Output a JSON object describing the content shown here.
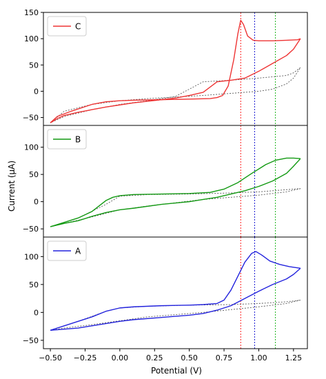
{
  "chart_data": {
    "type": "line",
    "xlabel": "Potential (V)",
    "ylabel": "Current (μA)",
    "xlim": [
      -0.55,
      1.35
    ],
    "x_ticks": [
      -0.5,
      -0.25,
      0.0,
      0.25,
      0.5,
      0.75,
      1.0,
      1.25
    ],
    "x_tick_labels": [
      "−0.50",
      "−0.25",
      "0.00",
      "0.25",
      "0.50",
      "0.75",
      "1.00",
      "1.25"
    ],
    "y_ticks": [
      -50,
      0,
      50,
      100,
      150
    ],
    "grid": false,
    "legend_placement": "top-left",
    "vertical_markers": [
      {
        "x": 0.87,
        "color": "#ff0000"
      },
      {
        "x": 0.97,
        "color": "#0000cc"
      },
      {
        "x": 1.12,
        "color": "#00aa00"
      }
    ],
    "panels": [
      {
        "label": "C",
        "color": "#ee3333",
        "ylim": [
          -65,
          150
        ],
        "y_tick_labels": [
          "−50",
          "0",
          "50",
          "100",
          "150"
        ],
        "cv_curve": {
          "forward": {
            "x": [
              -0.5,
              -0.45,
              -0.35,
              -0.2,
              -0.1,
              0.0,
              0.1,
              0.3,
              0.5,
              0.65,
              0.7,
              0.74,
              0.78,
              0.82,
              0.85,
              0.87,
              0.89,
              0.92,
              0.96,
              1.0,
              1.1,
              1.2,
              1.28,
              1.3
            ],
            "y": [
              -60,
              -48,
              -38,
              -25,
              -20,
              -18,
              -17,
              -16,
              -15,
              -14,
              -12,
              -8,
              10,
              60,
              110,
              135,
              127,
              105,
              97,
              96,
              96,
              97,
              98,
              100
            ]
          },
          "reverse": {
            "x": [
              1.3,
              1.25,
              1.2,
              1.1,
              1.0,
              0.9,
              0.8,
              0.7,
              0.6,
              0.5,
              0.4,
              0.3,
              0.1,
              0.0,
              -0.1,
              -0.2,
              -0.3,
              -0.4,
              -0.45,
              -0.5
            ],
            "y": [
              100,
              80,
              68,
              53,
              38,
              25,
              21,
              18,
              -2,
              -8,
              -13,
              -16,
              -22,
              -26,
              -30,
              -35,
              -40,
              -46,
              -52,
              -60
            ]
          }
        },
        "background": {
          "forward": {
            "x": [
              -0.5,
              -0.4,
              -0.2,
              0.0,
              0.2,
              0.4,
              0.6,
              0.8,
              1.0,
              1.1,
              1.2,
              1.25,
              1.3
            ],
            "y": [
              -60,
              -38,
              -25,
              -18,
              -14,
              -11,
              -8,
              -4,
              0,
              4,
              14,
              25,
              45
            ]
          },
          "reverse": {
            "x": [
              1.3,
              1.25,
              1.2,
              1.0,
              0.8,
              0.6,
              0.4,
              0.2,
              0.0,
              -0.2,
              -0.4,
              -0.5
            ],
            "y": [
              45,
              35,
              30,
              25,
              21,
              18,
              -10,
              -18,
              -25,
              -35,
              -48,
              -60
            ]
          }
        }
      },
      {
        "label": "B",
        "color": "#119911",
        "ylim": [
          -65,
          140
        ],
        "y_tick_labels": [
          "−50",
          "0",
          "50",
          "100"
        ],
        "cv_curve": {
          "forward": {
            "x": [
              -0.5,
              -0.4,
              -0.3,
              -0.2,
              -0.15,
              -0.1,
              -0.05,
              0.0,
              0.1,
              0.3,
              0.5,
              0.65,
              0.75,
              0.85,
              0.95,
              1.05,
              1.12,
              1.2,
              1.25,
              1.3
            ],
            "y": [
              -46,
              -38,
              -30,
              -18,
              -8,
              2,
              8,
              11,
              13,
              14,
              15,
              17,
              23,
              35,
              52,
              68,
              76,
              80,
              80,
              79
            ]
          },
          "reverse": {
            "x": [
              1.3,
              1.25,
              1.2,
              1.1,
              1.0,
              0.9,
              0.8,
              0.7,
              0.6,
              0.5,
              0.3,
              0.1,
              0.0,
              -0.1,
              -0.2,
              -0.3,
              -0.4,
              -0.5
            ],
            "y": [
              79,
              65,
              52,
              38,
              28,
              20,
              14,
              8,
              4,
              0,
              -5,
              -12,
              -15,
              -20,
              -27,
              -35,
              -40,
              -46
            ]
          }
        },
        "background": {
          "forward": {
            "x": [
              -0.5,
              -0.3,
              -0.1,
              0.0,
              0.2,
              0.5,
              0.8,
              1.0,
              1.2,
              1.3
            ],
            "y": [
              -46,
              -30,
              -5,
              10,
              13,
              14,
              16,
              18,
              22,
              24
            ]
          },
          "reverse": {
            "x": [
              1.3,
              1.2,
              1.0,
              0.8,
              0.6,
              0.4,
              0.2,
              0.0,
              -0.2,
              -0.4,
              -0.5
            ],
            "y": [
              24,
              18,
              12,
              8,
              4,
              -2,
              -8,
              -15,
              -28,
              -40,
              -46
            ]
          }
        }
      },
      {
        "label": "A",
        "color": "#2222dd",
        "ylim": [
          -65,
          135
        ],
        "y_tick_labels": [
          "−50",
          "0",
          "50",
          "100"
        ],
        "cv_curve": {
          "forward": {
            "x": [
              -0.5,
              -0.4,
              -0.3,
              -0.2,
              -0.1,
              0.0,
              0.1,
              0.3,
              0.5,
              0.6,
              0.7,
              0.75,
              0.8,
              0.85,
              0.9,
              0.95,
              0.98,
              1.02,
              1.08,
              1.15,
              1.22,
              1.3
            ],
            "y": [
              -32,
              -24,
              -16,
              -8,
              2,
              8,
              10,
              12,
              13,
              14,
              16,
              22,
              40,
              65,
              90,
              106,
              109,
              103,
              92,
              86,
              82,
              79
            ]
          },
          "reverse": {
            "x": [
              1.3,
              1.25,
              1.2,
              1.1,
              1.0,
              0.9,
              0.8,
              0.7,
              0.6,
              0.5,
              0.3,
              0.1,
              0.0,
              -0.1,
              -0.2,
              -0.3,
              -0.4,
              -0.5
            ],
            "y": [
              79,
              68,
              60,
              50,
              38,
              25,
              12,
              4,
              -2,
              -5,
              -9,
              -13,
              -16,
              -20,
              -24,
              -28,
              -30,
              -32
            ]
          }
        },
        "background": {
          "forward": {
            "x": [
              -0.5,
              -0.3,
              -0.1,
              0.0,
              0.2,
              0.5,
              0.8,
              1.0,
              1.2,
              1.3
            ],
            "y": [
              -32,
              -16,
              2,
              8,
              11,
              13,
              14,
              16,
              19,
              22
            ]
          },
          "reverse": {
            "x": [
              1.3,
              1.2,
              1.0,
              0.8,
              0.6,
              0.4,
              0.2,
              0.0,
              -0.2,
              -0.4,
              -0.5
            ],
            "y": [
              22,
              16,
              10,
              5,
              0,
              -4,
              -8,
              -15,
              -22,
              -28,
              -32
            ]
          }
        }
      }
    ]
  }
}
